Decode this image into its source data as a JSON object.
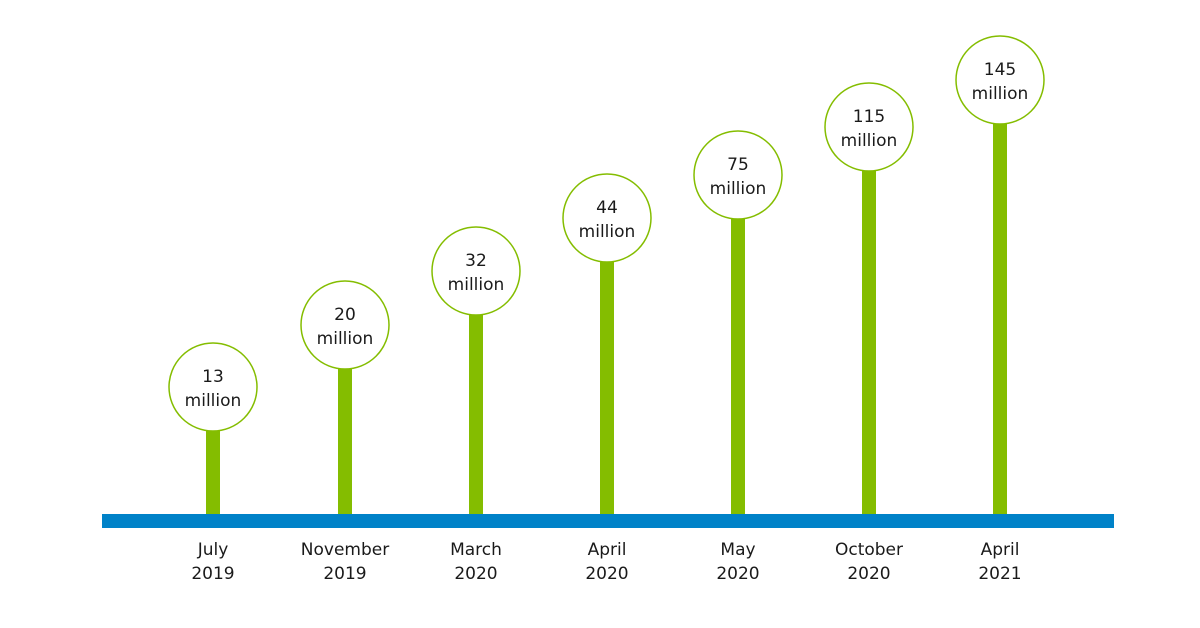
{
  "chart_data": {
    "type": "bar",
    "categories": [
      [
        "July",
        "2019"
      ],
      [
        "November",
        "2019"
      ],
      [
        "March",
        "2020"
      ],
      [
        "April",
        "2020"
      ],
      [
        "May",
        "2020"
      ],
      [
        "October",
        "2020"
      ],
      [
        "April",
        "2021"
      ]
    ],
    "values": [
      13,
      20,
      32,
      44,
      75,
      115,
      145
    ],
    "data_labels": [
      [
        "13",
        "million"
      ],
      [
        "20",
        "million"
      ],
      [
        "32",
        "million"
      ],
      [
        "44",
        "million"
      ],
      [
        "75",
        "million"
      ],
      [
        "115",
        "million"
      ],
      [
        "145",
        "million"
      ]
    ],
    "colors": {
      "bar": "#84bd00",
      "circle_stroke": "#84bd00",
      "axis": "#0082c8",
      "text": "#1a1a1a"
    }
  }
}
